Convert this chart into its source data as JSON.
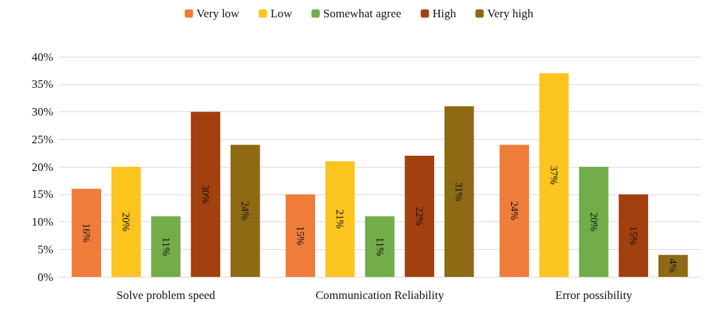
{
  "chart_data": {
    "type": "bar",
    "categories": [
      "Solve problem speed",
      "Communication Reliability",
      "Error possibility"
    ],
    "series": [
      {
        "name": "Very low",
        "color": "#f07c3a",
        "values": [
          16,
          15,
          24
        ],
        "value_labels": [
          "16%",
          "15%",
          "24%"
        ]
      },
      {
        "name": "Low",
        "color": "#fcc41e",
        "values": [
          20,
          21,
          37
        ],
        "value_labels": [
          "20%",
          "21%",
          "37%"
        ]
      },
      {
        "name": "Somewhat agree",
        "color": "#72ad4a",
        "values": [
          11,
          11,
          20
        ],
        "value_labels": [
          "11%",
          "11%",
          "20%"
        ]
      },
      {
        "name": "High",
        "color": "#a3400f",
        "values": [
          30,
          22,
          15
        ],
        "value_labels": [
          "30%",
          "22%",
          "15%"
        ]
      },
      {
        "name": "Very high",
        "color": "#8e6a14",
        "values": [
          24,
          31,
          4
        ],
        "value_labels": [
          "24%",
          "31%",
          "4%"
        ]
      }
    ],
    "ylim": [
      0,
      40
    ],
    "yticks": [
      {
        "value": 0,
        "label": "0%"
      },
      {
        "value": 5,
        "label": "5%"
      },
      {
        "value": 10,
        "label": "10%"
      },
      {
        "value": 15,
        "label": "15%"
      },
      {
        "value": 20,
        "label": "20%"
      },
      {
        "value": 25,
        "label": "25%"
      },
      {
        "value": 30,
        "label": "30%"
      },
      {
        "value": 35,
        "label": "35%"
      },
      {
        "value": 40,
        "label": "40%"
      }
    ],
    "grid": "y",
    "legend": "top"
  }
}
